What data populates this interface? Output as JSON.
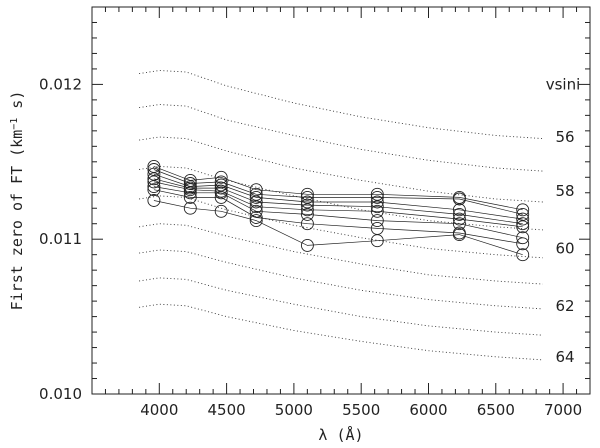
{
  "chart_data": {
    "type": "scatter",
    "xlabel": "λ (Å)",
    "ylabel_main": "First zero of FT (km",
    "ylabel_sup": "−1",
    "ylabel_tail": " s)",
    "xlim": [
      3500,
      7200
    ],
    "ylim": [
      0.01,
      0.0125
    ],
    "x_ticks": [
      4000,
      4500,
      5000,
      5500,
      6000,
      6500,
      7000
    ],
    "x_tick_labels": [
      "4000",
      "4500",
      "5000",
      "5500",
      "6000",
      "6500",
      "7000"
    ],
    "x_minor_step": 100,
    "y_ticks": [
      0.01,
      0.011,
      0.012
    ],
    "y_tick_labels": [
      "0.010",
      "0.011",
      "0.012"
    ],
    "y_minor_step": 0.0001,
    "x": [
      3960,
      4230,
      4460,
      4720,
      5100,
      5620,
      6230,
      6700
    ],
    "series": [
      {
        "values": [
          0.01147,
          0.01138,
          0.0114,
          0.01132,
          0.01129,
          0.01129,
          0.01127,
          0.01119
        ]
      },
      {
        "values": [
          0.01145,
          0.01136,
          0.01137,
          0.01129,
          0.01127,
          0.01127,
          0.01126,
          0.01116
        ]
      },
      {
        "values": [
          0.01142,
          0.01134,
          0.01135,
          0.01127,
          0.01124,
          0.01124,
          0.01119,
          0.01113
        ]
      },
      {
        "values": [
          0.01139,
          0.01133,
          0.01133,
          0.01124,
          0.01122,
          0.01121,
          0.01116,
          0.0111
        ]
      },
      {
        "values": [
          0.01137,
          0.01132,
          0.01131,
          0.01121,
          0.01119,
          0.01118,
          0.01113,
          0.01108
        ]
      },
      {
        "values": [
          0.01134,
          0.0113,
          0.0113,
          0.01118,
          0.01116,
          0.01112,
          0.0111,
          0.01101
        ]
      },
      {
        "values": [
          0.01132,
          0.01127,
          0.01127,
          0.01114,
          0.0111,
          0.01107,
          0.01104,
          0.01097
        ]
      },
      {
        "values": [
          0.01125,
          0.0112,
          0.01118,
          0.01112,
          0.01096,
          0.01099,
          0.01103,
          0.0109
        ]
      }
    ],
    "model_curves": [
      {
        "x": [
          3850,
          4000,
          4200,
          4500,
          5000,
          5500,
          6000,
          6500,
          6850
        ],
        "values": [
          0.01207,
          0.01209,
          0.01208,
          0.01199,
          0.01188,
          0.01179,
          0.01172,
          0.01167,
          0.01165
        ]
      },
      {
        "x": [
          3850,
          4000,
          4200,
          4500,
          5000,
          5500,
          6000,
          6500,
          6850
        ],
        "values": [
          0.01185,
          0.01187,
          0.01186,
          0.01177,
          0.01167,
          0.01158,
          0.01151,
          0.01146,
          0.01144
        ]
      },
      {
        "x": [
          3850,
          4000,
          4200,
          4500,
          5000,
          5500,
          6000,
          6500,
          6850
        ],
        "values": [
          0.01164,
          0.01166,
          0.01165,
          0.01157,
          0.01146,
          0.01138,
          0.01131,
          0.01126,
          0.01124
        ]
      },
      {
        "x": [
          3850,
          4000,
          4200,
          4500,
          5000,
          5500,
          6000,
          6500,
          6850
        ],
        "values": [
          0.01145,
          0.01147,
          0.01146,
          0.01138,
          0.01128,
          0.01119,
          0.01112,
          0.01108,
          0.01106
        ]
      },
      {
        "x": [
          3850,
          4000,
          4200,
          4500,
          5000,
          5500,
          6000,
          6500,
          6850
        ],
        "values": [
          0.01126,
          0.01128,
          0.01127,
          0.01119,
          0.01109,
          0.01101,
          0.01094,
          0.0109,
          0.01088
        ]
      },
      {
        "x": [
          3850,
          4000,
          4200,
          4500,
          5000,
          5500,
          6000,
          6500,
          6850
        ],
        "values": [
          0.01108,
          0.0111,
          0.01109,
          0.01102,
          0.01092,
          0.01084,
          0.01077,
          0.01073,
          0.01071
        ]
      },
      {
        "x": [
          3850,
          4000,
          4200,
          4500,
          5000,
          5500,
          6000,
          6500,
          6850
        ],
        "values": [
          0.01091,
          0.01093,
          0.01092,
          0.01085,
          0.01075,
          0.01067,
          0.01061,
          0.01057,
          0.01055
        ]
      },
      {
        "x": [
          3850,
          4000,
          4200,
          4500,
          5000,
          5500,
          6000,
          6500,
          6850
        ],
        "values": [
          0.01073,
          0.01075,
          0.01074,
          0.01067,
          0.01058,
          0.0105,
          0.01044,
          0.0104,
          0.01038
        ]
      },
      {
        "x": [
          3850,
          4000,
          4200,
          4500,
          5000,
          5500,
          6000,
          6500,
          6850
        ],
        "values": [
          0.01056,
          0.01058,
          0.01057,
          0.0105,
          0.01041,
          0.01034,
          0.01028,
          0.01024,
          0.01022
        ]
      }
    ],
    "vsini_title": "vsini",
    "vsini_title_y": 0.012,
    "vsini_labels": [
      {
        "text": "56",
        "y": 0.01166
      },
      {
        "text": "58",
        "y": 0.01131
      },
      {
        "text": "60",
        "y": 0.01094
      },
      {
        "text": "62",
        "y": 0.01057
      },
      {
        "text": "64",
        "y": 0.01024
      }
    ],
    "grid": false,
    "legend": "none"
  }
}
